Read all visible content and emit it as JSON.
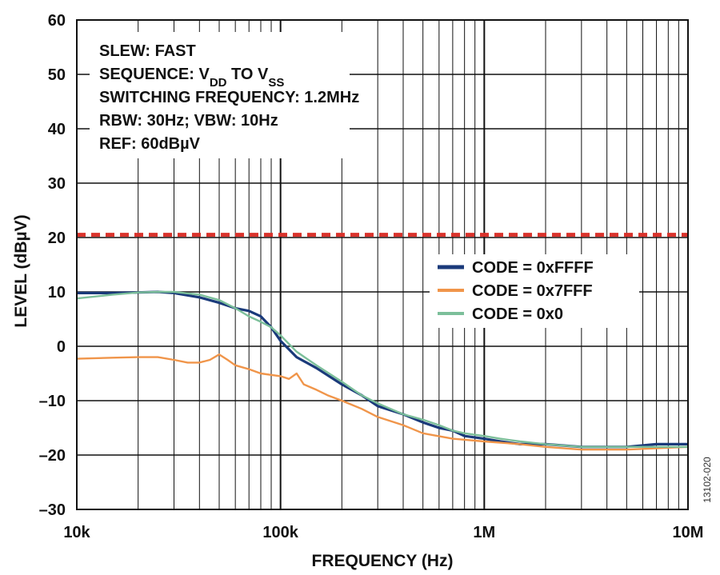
{
  "figure_id": "13102-020",
  "annotations": [
    {
      "text": "SLEW: FAST"
    },
    {
      "parts": [
        {
          "t": "SEQUENCE: V"
        },
        {
          "t": "DD",
          "sub": true
        },
        {
          "t": " TO V"
        },
        {
          "t": "SS",
          "sub": true
        }
      ]
    },
    {
      "text": "SWITCHING FREQUENCY: 1.2MHz"
    },
    {
      "text": "RBW: 30Hz; VBW: 10Hz"
    },
    {
      "text": "REF: 60dBµV"
    }
  ],
  "chart_data": {
    "type": "line",
    "title": "",
    "xlabel": "FREQUENCY (Hz)",
    "ylabel": "LEVEL (dBµV)",
    "x_scale": "log",
    "xlim": [
      10000,
      10000000
    ],
    "ylim": [
      -30,
      60
    ],
    "x_ticks": [
      {
        "value": 10000,
        "label": "10k"
      },
      {
        "value": 100000,
        "label": "100k"
      },
      {
        "value": 1000000,
        "label": "1M"
      },
      {
        "value": 10000000,
        "label": "10M"
      }
    ],
    "y_ticks": [
      {
        "value": 60,
        "label": "60"
      },
      {
        "value": 50,
        "label": "50"
      },
      {
        "value": 40,
        "label": "40"
      },
      {
        "value": 30,
        "label": "30"
      },
      {
        "value": 20,
        "label": "20"
      },
      {
        "value": 10,
        "label": "10"
      },
      {
        "value": 0,
        "label": "0"
      },
      {
        "value": -10,
        "label": "–10"
      },
      {
        "value": -20,
        "label": "–20"
      },
      {
        "value": -30,
        "label": "–30"
      }
    ],
    "grid": true,
    "legend_position": "right",
    "reference_line": {
      "y": 20.5,
      "style": "dashed",
      "color": "#d9322b"
    },
    "series": [
      {
        "name": "CODE = 0xFFFF",
        "color": "#1a3a7a",
        "x": [
          10000,
          15000,
          20000,
          25000,
          30000,
          40000,
          50000,
          60000,
          70000,
          80000,
          90000,
          100000,
          120000,
          150000,
          200000,
          250000,
          300000,
          400000,
          500000,
          600000,
          700000,
          800000,
          1000000,
          1200000,
          1500000,
          2000000,
          3000000,
          5000000,
          7000000,
          10000000
        ],
        "y": [
          9.8,
          9.8,
          9.9,
          10,
          9.8,
          9,
          8,
          7,
          6.5,
          5.5,
          3.5,
          1,
          -2,
          -4,
          -7,
          -9,
          -11,
          -12.5,
          -14,
          -15,
          -15.5,
          -16.5,
          -17,
          -17.5,
          -18,
          -18,
          -18.5,
          -18.5,
          -18,
          -18
        ]
      },
      {
        "name": "CODE = 0x7FFF",
        "color": "#f0954a",
        "x": [
          10000,
          15000,
          20000,
          25000,
          30000,
          35000,
          40000,
          45000,
          50000,
          55000,
          60000,
          70000,
          80000,
          100000,
          110000,
          120000,
          130000,
          150000,
          170000,
          200000,
          250000,
          300000,
          400000,
          500000,
          700000,
          1000000,
          1500000,
          2000000,
          3000000,
          5000000,
          10000000
        ],
        "y": [
          -2.3,
          -2.1,
          -2,
          -2,
          -2.5,
          -3,
          -3,
          -2.5,
          -1.5,
          -2.5,
          -3.5,
          -4.2,
          -5,
          -5.5,
          -6,
          -5,
          -7,
          -8,
          -9,
          -10,
          -11.5,
          -13,
          -14.5,
          -16,
          -17,
          -17.5,
          -18,
          -18.5,
          -19,
          -19,
          -18.5
        ]
      },
      {
        "name": "CODE = 0x0",
        "color": "#7cbf9a",
        "x": [
          10000,
          15000,
          20000,
          25000,
          30000,
          40000,
          50000,
          60000,
          70000,
          80000,
          90000,
          100000,
          120000,
          150000,
          200000,
          250000,
          300000,
          400000,
          500000,
          600000,
          700000,
          800000,
          1000000,
          1200000,
          1500000,
          2000000,
          3000000,
          5000000,
          7000000,
          10000000
        ],
        "y": [
          8.8,
          9.5,
          9.9,
          10,
          10,
          9.5,
          8.5,
          7,
          5.5,
          4.5,
          3.5,
          2,
          -1,
          -3.5,
          -6.5,
          -9,
          -10.5,
          -12.5,
          -13.5,
          -14.5,
          -15.5,
          -16,
          -16.5,
          -17,
          -17.5,
          -18,
          -18.5,
          -18.5,
          -18.5,
          -18.5
        ]
      }
    ]
  }
}
